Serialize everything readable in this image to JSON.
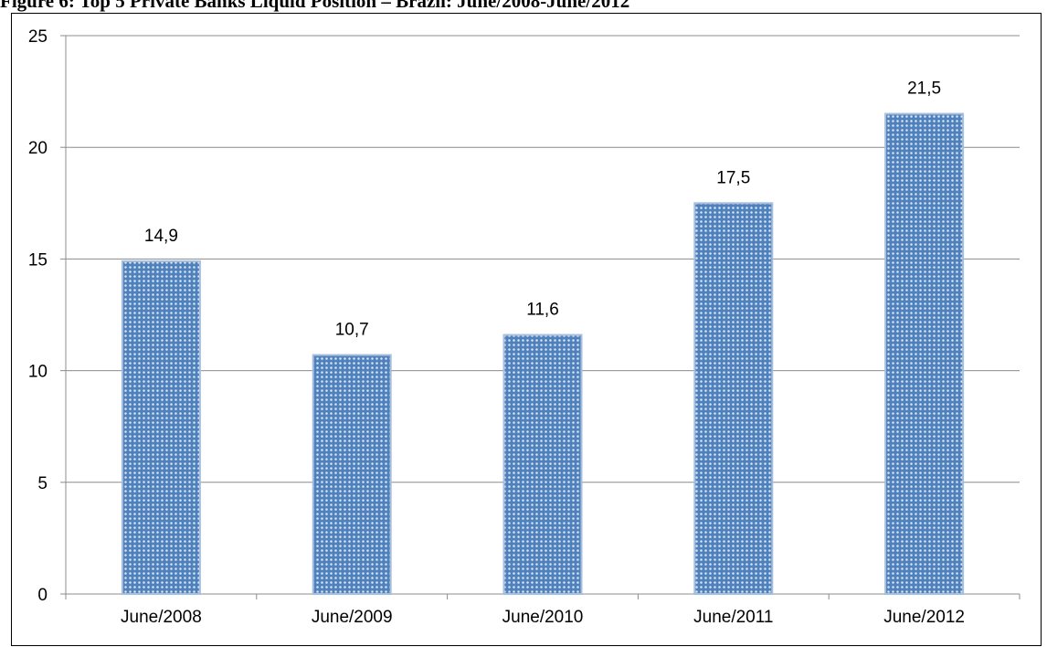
{
  "title": "Figure 6: Top 5 Private Banks Liquid Position – Brazil: June/2008-June/2012",
  "colors": {
    "bar_fill": "#4F81BD",
    "bar_dot": "#DCE6F2",
    "bar_edge": "#A7BFDE",
    "grid": "#8C8C8C"
  },
  "chart_data": {
    "type": "bar",
    "categories": [
      "June/2008",
      "June/2009",
      "June/2010",
      "June/2011",
      "June/2012"
    ],
    "values": [
      14.9,
      10.7,
      11.6,
      17.5,
      21.5
    ],
    "data_labels": [
      "14,9",
      "10,7",
      "11,6",
      "17,5",
      "21,5"
    ],
    "ylim": [
      0,
      25
    ],
    "yticks": [
      0,
      5,
      10,
      15,
      20,
      25
    ],
    "grid": true,
    "legend": "none"
  }
}
